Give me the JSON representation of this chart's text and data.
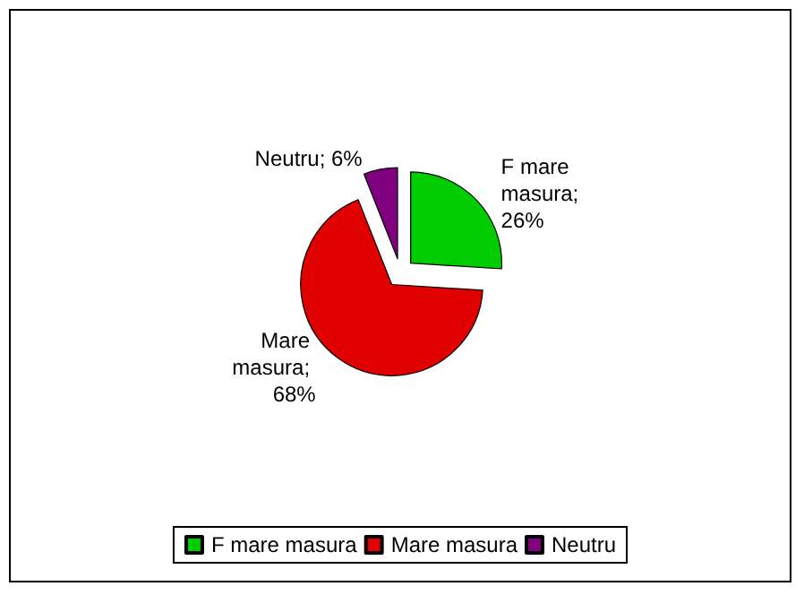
{
  "chart_data": {
    "type": "pie",
    "categories": [
      "F mare masura",
      "Mare masura",
      "Neutru"
    ],
    "values": [
      26,
      68,
      6
    ],
    "value_labels": [
      "F mare masura; 26%",
      "Mare masura; 68%",
      "Neutru; 6%"
    ],
    "colors": [
      "#00cc00",
      "#e00000",
      "#800080"
    ],
    "legend": "bottom"
  }
}
